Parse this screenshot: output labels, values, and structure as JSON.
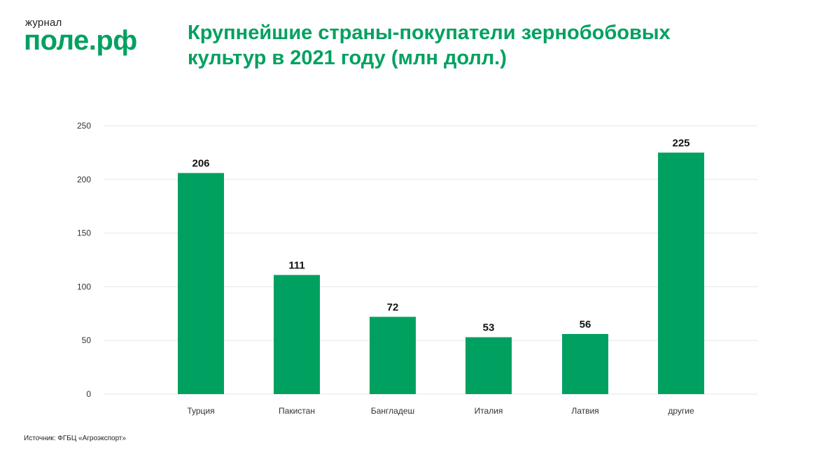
{
  "logo": {
    "small": "журнал",
    "big": "поле.рф"
  },
  "source": "Источник: ФГБЦ «Агроэкспорт»",
  "colors": {
    "accent": "#00a160",
    "grid": "#e6e6e6"
  },
  "chart_data": {
    "type": "bar",
    "title": "Крупнейшие страны-покупатели зернобобовых культур в 2021 году (млн долл.)",
    "categories": [
      "Турция",
      "Пакистан",
      "Бангладеш",
      "Италия",
      "Латвия",
      "другие"
    ],
    "values": [
      206,
      111,
      72,
      53,
      56,
      225
    ],
    "value_labels": [
      "206",
      "111",
      "72",
      "53",
      "56",
      "225"
    ],
    "yticks": [
      0,
      50,
      100,
      150,
      200,
      250
    ],
    "ylim": [
      0,
      250
    ],
    "xlabel": "",
    "ylabel": "",
    "grid": true
  }
}
